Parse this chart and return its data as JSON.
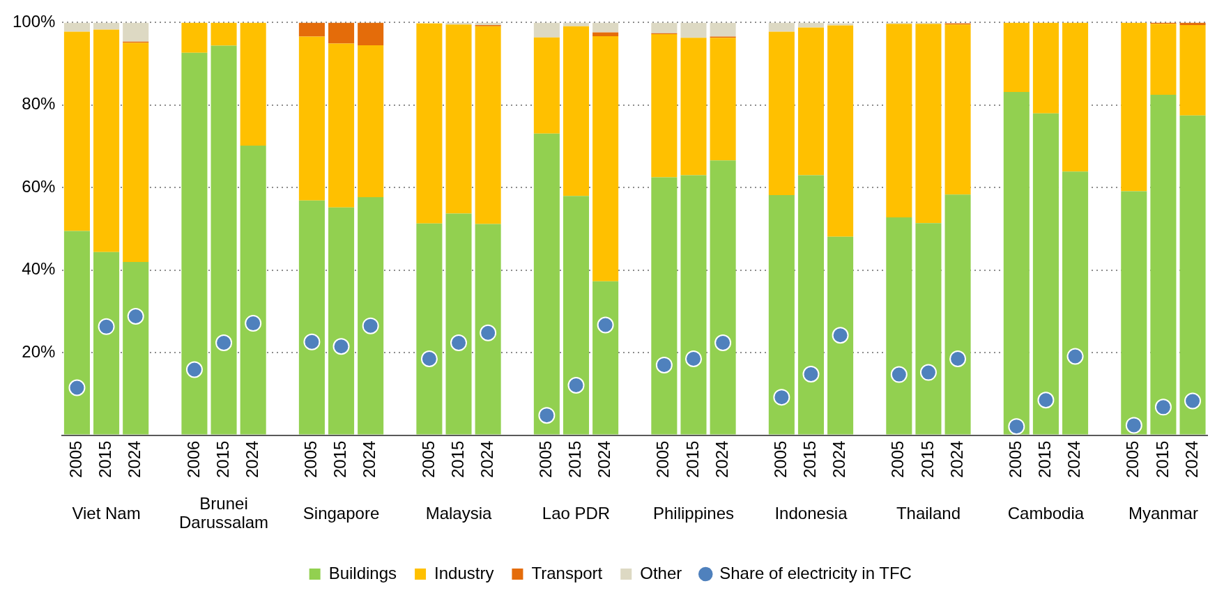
{
  "chart_data": {
    "type": "bar",
    "stacked": true,
    "grid": "y",
    "legend": "bottom",
    "categories": [
      "2005",
      "2015",
      "2024",
      null,
      "2006",
      "2015",
      "2024",
      null,
      "2005",
      "2015",
      "2024",
      null,
      "2005",
      "2015",
      "2024",
      null,
      "2005",
      "2015",
      "2024",
      null,
      "2005",
      "2015",
      "2024",
      null,
      "2005",
      "2015",
      "2024",
      null,
      "2005",
      "2015",
      "2024",
      null,
      "2005",
      "2015",
      "2024",
      null,
      "2005",
      "2015",
      "2024"
    ],
    "annotations": [
      "Viet Nam",
      "Brunei Darussalam",
      "Singapore",
      "Malaysia",
      "Lao PDR",
      "Philippines",
      "Indonesia",
      "Thailand",
      "Cambodia",
      "Myanmar"
    ],
    "ylim": [
      0,
      100
    ],
    "yticks": [
      {
        "value": 0,
        "label": null
      },
      {
        "value": 20,
        "label": "20%"
      },
      {
        "value": 40,
        "label": "40%"
      },
      {
        "value": 60,
        "label": "60%"
      },
      {
        "value": 80,
        "label": "80%"
      },
      {
        "value": 100,
        "label": "100%"
      }
    ],
    "series": [
      {
        "name": "Buildings",
        "color": "#92d050",
        "values": [
          49.5,
          44.4,
          42.0,
          null,
          92.7,
          94.4,
          70.2,
          null,
          56.9,
          55.2,
          57.7,
          null,
          51.3,
          53.7,
          51.2,
          null,
          73.1,
          58.0,
          37.3,
          null,
          62.5,
          63.0,
          66.6,
          null,
          58.2,
          63.0,
          48.1,
          null,
          52.8,
          51.4,
          58.3,
          null,
          83.2,
          78.0,
          63.9,
          null,
          59.1,
          82.5,
          77.5
        ]
      },
      {
        "name": "Industry",
        "color": "#ffc000",
        "values": [
          48.3,
          53.9,
          53.1,
          null,
          7.3,
          5.6,
          29.8,
          null,
          39.7,
          39.7,
          36.8,
          null,
          48.5,
          45.8,
          47.9,
          null,
          23.3,
          41.1,
          59.4,
          null,
          34.7,
          33.3,
          29.7,
          null,
          39.6,
          35.8,
          51.2,
          null,
          46.9,
          48.3,
          41.2,
          null,
          16.8,
          22.0,
          36.1,
          null,
          40.9,
          17.2,
          21.9
        ]
      },
      {
        "name": "Transport",
        "color": "#e46c0a",
        "values": [
          0,
          0,
          0.3,
          null,
          0,
          0,
          0,
          null,
          3.4,
          5.1,
          5.5,
          null,
          null,
          0,
          0.3,
          null,
          0,
          0,
          0.9,
          null,
          0.2,
          0,
          0.3,
          null,
          0,
          0,
          null,
          null,
          0,
          0,
          0.3,
          null,
          0,
          0,
          0,
          null,
          0,
          0.3,
          0.6
        ]
      },
      {
        "name": "Other",
        "color": "#ddd9c3",
        "values": [
          2.2,
          1.7,
          4.6,
          null,
          0,
          0,
          0,
          null,
          0,
          0,
          0,
          null,
          0,
          0.5,
          0.6,
          null,
          3.6,
          0.9,
          2.4,
          null,
          2.6,
          3.7,
          3.4,
          null,
          2.2,
          1.2,
          0.5,
          null,
          0.3,
          0.3,
          null,
          null,
          0,
          0,
          0,
          null,
          0,
          0,
          0
        ]
      },
      {
        "name": "Share of electricity in TFC",
        "type": "scatter",
        "marker": "circle",
        "color": "#4f81bd",
        "values": [
          11.5,
          26.3,
          28.8,
          null,
          15.9,
          22.4,
          27.1,
          null,
          22.6,
          21.5,
          26.5,
          null,
          18.5,
          22.4,
          24.8,
          null,
          4.8,
          12.1,
          26.7,
          null,
          17.0,
          18.5,
          22.4,
          null,
          9.2,
          14.8,
          24.2,
          null,
          14.7,
          15.2,
          18.5,
          null,
          2.1,
          8.5,
          19.1,
          null,
          2.4,
          6.8,
          8.3
        ]
      }
    ]
  }
}
